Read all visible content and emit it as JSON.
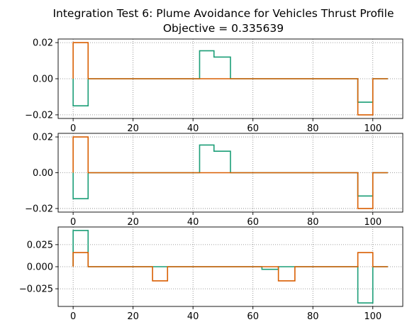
{
  "title_line1": "Integration Test 6: Plume Avoidance for Vehicles Thrust Profile",
  "title_line2": "Objective = 0.335639",
  "chart_data": [
    {
      "type": "line",
      "drawstyle": "steps-post",
      "grid": true,
      "grid_style": "dotted",
      "xlim": [
        -5,
        110
      ],
      "xticks": [
        0,
        20,
        40,
        60,
        80,
        100
      ],
      "ylim": [
        -0.022,
        0.022
      ],
      "yticks": [
        -0.02,
        0.0,
        0.02
      ],
      "ytick_labels": [
        "−0.02",
        "0.00",
        "0.02"
      ],
      "series": [
        {
          "color": "#1b9e77",
          "x": [
            0,
            0,
            5,
            5,
            42.2,
            42.2,
            47,
            47,
            52.5,
            52.5,
            95,
            95,
            100,
            100,
            105
          ],
          "y": [
            0,
            -0.015,
            -0.015,
            0,
            0,
            0.0155,
            0.0155,
            0.012,
            0.012,
            0,
            0,
            -0.013,
            -0.013,
            0,
            0
          ]
        },
        {
          "color": "#d95f02",
          "x": [
            0,
            0,
            5,
            5,
            95,
            95,
            100,
            100,
            105
          ],
          "y": [
            0,
            0.02,
            0.02,
            0,
            0,
            -0.02,
            -0.02,
            0,
            0
          ]
        }
      ]
    },
    {
      "type": "line",
      "drawstyle": "steps-post",
      "grid": true,
      "grid_style": "dotted",
      "xlim": [
        -5,
        110
      ],
      "xticks": [
        0,
        20,
        40,
        60,
        80,
        100
      ],
      "ylim": [
        -0.022,
        0.022
      ],
      "yticks": [
        -0.02,
        0.0,
        0.02
      ],
      "ytick_labels": [
        "−0.02",
        "0.00",
        "0.02"
      ],
      "series": [
        {
          "color": "#1b9e77",
          "x": [
            0,
            0,
            5,
            5,
            42.2,
            42.2,
            47,
            47,
            52.5,
            52.5,
            95,
            95,
            100,
            100,
            105
          ],
          "y": [
            0,
            -0.0145,
            -0.0145,
            0,
            0,
            0.0155,
            0.0155,
            0.012,
            0.012,
            0,
            0,
            -0.013,
            -0.013,
            0,
            0
          ]
        },
        {
          "color": "#d95f02",
          "x": [
            0,
            0,
            5,
            5,
            95,
            95,
            100,
            100,
            105
          ],
          "y": [
            0,
            0.02,
            0.02,
            0,
            0,
            -0.02,
            -0.02,
            0,
            0
          ]
        }
      ]
    },
    {
      "type": "line",
      "drawstyle": "steps-post",
      "grid": true,
      "grid_style": "dotted",
      "xlim": [
        -5,
        110
      ],
      "xticks": [
        0,
        20,
        40,
        60,
        80,
        100
      ],
      "ylim": [
        -0.045,
        0.045
      ],
      "yticks": [
        -0.025,
        0.0,
        0.025
      ],
      "ytick_labels": [
        "−0.025",
        "0.000",
        "0.025"
      ],
      "series": [
        {
          "color": "#1b9e77",
          "x": [
            0,
            0,
            5,
            5,
            63,
            63,
            68.5,
            68.5,
            95,
            95,
            100,
            100,
            105
          ],
          "y": [
            0,
            0.041,
            0.041,
            0,
            0,
            -0.003,
            -0.003,
            0,
            0,
            -0.041,
            -0.041,
            0,
            0
          ]
        },
        {
          "color": "#d95f02",
          "x": [
            0,
            0,
            5,
            5,
            26.5,
            26.5,
            31.5,
            31.5,
            68.5,
            68.5,
            74,
            74,
            95,
            95,
            100,
            100,
            105
          ],
          "y": [
            0,
            0.016,
            0.016,
            0,
            0,
            -0.016,
            -0.016,
            0,
            0,
            -0.016,
            -0.016,
            0,
            0,
            0.016,
            0.016,
            0,
            0
          ]
        }
      ]
    }
  ]
}
